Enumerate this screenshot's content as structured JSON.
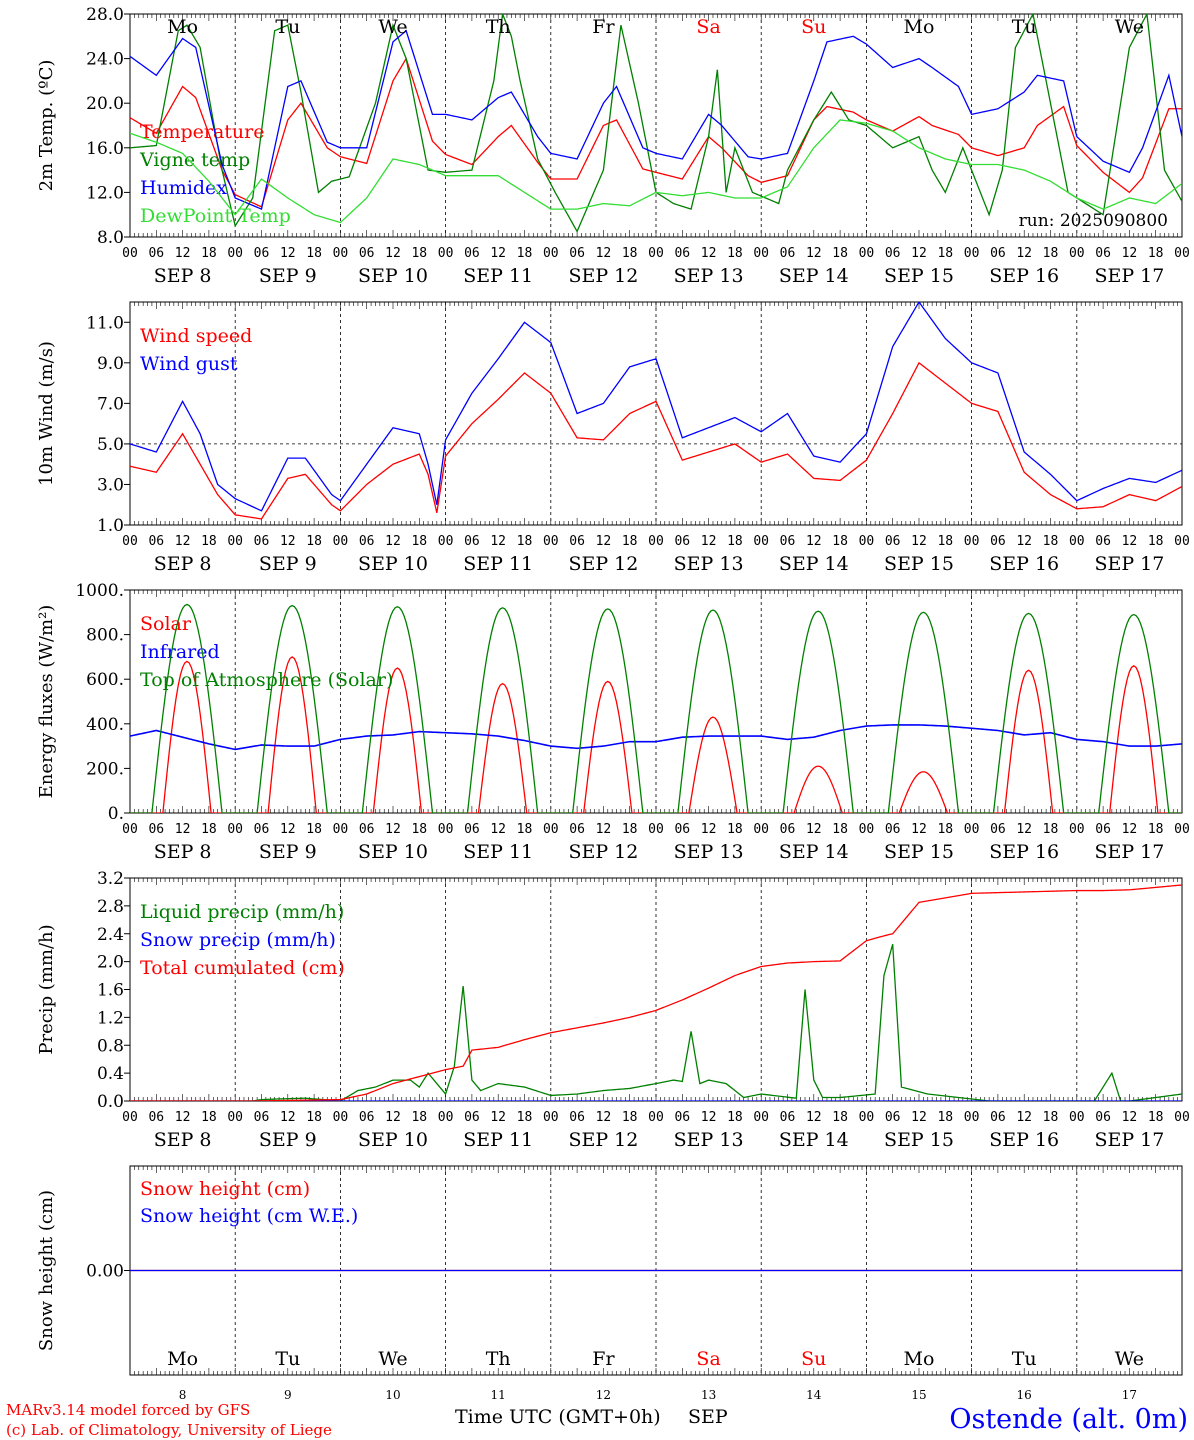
{
  "colors": {
    "red": "#ff0000",
    "green": "#008000",
    "blue": "#0000ff",
    "lightgreen": "#33dd33",
    "weekend": "#ff0000",
    "black": "#000000"
  },
  "x_axis": {
    "hour_ticks": [
      "00",
      "06",
      "12",
      "18"
    ],
    "hour_end": "00",
    "date_labels": [
      "SEP  8",
      "SEP  9",
      "SEP 10",
      "SEP 11",
      "SEP 12",
      "SEP 13",
      "SEP 14",
      "SEP 15",
      "SEP 16",
      "SEP 17"
    ],
    "day_names": [
      "Mo",
      "Tu",
      "We",
      "Th",
      "Fr",
      "Sa",
      "Su",
      "Mo",
      "Tu",
      "We"
    ],
    "weekend_index": [
      5,
      6
    ],
    "day_numbers": [
      "8",
      "9",
      "10",
      "11",
      "12",
      "13",
      "14",
      "15",
      "16",
      "17"
    ],
    "title": "Time UTC (GMT+0h)",
    "month": "SEP"
  },
  "footer": {
    "model": "MARv3.14 model forced by GFS",
    "credit": "(c) Lab. of Climatology, University of Liege",
    "station": "Ostende (alt. 0m)"
  },
  "chart_data": [
    {
      "type": "line",
      "id": "temp",
      "ylabel": "2m Temp. (ºC)",
      "ylim": [
        8,
        28
      ],
      "yticks": [
        "8.0",
        "12.0",
        "16.0",
        "20.0",
        "24.0",
        "28.0"
      ],
      "run_label": "run: 2025090800",
      "series": [
        {
          "name": "Temperature",
          "color": "red",
          "x": [
            0,
            6,
            12,
            15,
            21,
            24,
            30,
            36,
            39,
            45,
            48,
            54,
            60,
            63,
            69,
            72,
            78,
            84,
            87,
            93,
            96,
            102,
            108,
            111,
            117,
            120,
            126,
            132,
            135,
            141,
            144,
            150,
            156,
            159,
            165,
            168,
            174,
            180,
            183,
            189,
            192,
            198,
            204,
            207,
            213,
            216,
            222,
            228,
            231,
            237
          ],
          "values": [
            18.7,
            17.3,
            21.5,
            20.5,
            14,
            11.8,
            10.7,
            18.5,
            20,
            16,
            15.2,
            14.6,
            22,
            24,
            16.6,
            15.4,
            14.5,
            17,
            18,
            14.7,
            13.2,
            13.2,
            18,
            18.5,
            14.1,
            13.8,
            13.2,
            17,
            16,
            13.5,
            12.9,
            13.5,
            18.5,
            19.7,
            19.2,
            18.5,
            17.5,
            18.8,
            18,
            17.2,
            16,
            15.3,
            16,
            18,
            19.7,
            16.2,
            13.8,
            12,
            13.3,
            19.5
          ]
        },
        {
          "name": "Vigne temp",
          "color": "green",
          "x": [
            0,
            6,
            11,
            13,
            16,
            21,
            24,
            28,
            33,
            36,
            39,
            43,
            46,
            50,
            56,
            60,
            63,
            68,
            72,
            78,
            83,
            85,
            87,
            89,
            93,
            97,
            102,
            108,
            112,
            116,
            120,
            124,
            128,
            132,
            134,
            136,
            138,
            142,
            148,
            150,
            156,
            160,
            164,
            168,
            174,
            180,
            183,
            186,
            190,
            196,
            199,
            202,
            206,
            210,
            214,
            218,
            222,
            228,
            232,
            236,
            240
          ],
          "values": [
            16,
            16.2,
            26.5,
            27,
            25,
            14,
            9,
            11.5,
            26.5,
            27,
            21,
            12,
            13,
            13.4,
            20,
            27,
            24,
            14,
            13.8,
            14,
            22,
            28,
            26,
            22,
            15,
            12,
            8.5,
            14,
            27,
            20,
            12,
            11,
            10.5,
            17,
            23,
            12,
            16,
            12,
            11,
            14,
            18.5,
            21,
            18.5,
            18,
            16,
            17,
            14,
            12,
            16,
            10,
            14,
            25,
            28,
            20,
            12,
            11,
            10,
            25,
            28,
            14,
            11.2
          ]
        },
        {
          "name": "Humidex",
          "color": "blue",
          "x": [
            0,
            6,
            12,
            15,
            21,
            24,
            30,
            36,
            39,
            45,
            48,
            54,
            60,
            63,
            69,
            72,
            78,
            84,
            87,
            93,
            96,
            102,
            108,
            111,
            117,
            120,
            126,
            132,
            135,
            141,
            144,
            150,
            156,
            159,
            165,
            168,
            174,
            180,
            183,
            189,
            192,
            198,
            204,
            207,
            213,
            216,
            222,
            228,
            231,
            237,
            240
          ],
          "values": [
            24.2,
            22.5,
            25.8,
            25,
            14.5,
            11.5,
            10.5,
            21.5,
            22,
            16.5,
            16,
            16,
            25.5,
            26.5,
            19,
            19,
            18.5,
            20.5,
            21,
            17,
            15.5,
            15,
            20,
            21.5,
            16,
            15.5,
            15,
            19,
            18,
            15.2,
            15,
            15.5,
            22,
            25.5,
            26,
            25.3,
            23.2,
            24,
            23.2,
            21.5,
            19,
            19.5,
            21,
            22.5,
            22,
            17,
            14.8,
            13.8,
            16,
            22.5,
            17
          ]
        },
        {
          "name": "DewPoint Temp",
          "color": "lightgreen",
          "x": [
            0,
            6,
            12,
            18,
            24,
            30,
            36,
            42,
            48,
            54,
            60,
            66,
            72,
            78,
            84,
            90,
            96,
            102,
            108,
            114,
            120,
            126,
            132,
            138,
            144,
            150,
            156,
            162,
            168,
            174,
            180,
            186,
            192,
            198,
            204,
            210,
            216,
            222,
            228,
            234,
            240
          ],
          "values": [
            17.3,
            16.5,
            15.5,
            13,
            10,
            13.2,
            11.5,
            10,
            9.3,
            11.5,
            15,
            14.5,
            13.5,
            13.5,
            13.5,
            12,
            10.5,
            10.5,
            11,
            10.8,
            12,
            11.7,
            12,
            11.5,
            11.5,
            12.5,
            16,
            18.5,
            18.2,
            17.5,
            16,
            15,
            14.5,
            14.5,
            14,
            13,
            11.5,
            10.5,
            11.5,
            11,
            12.8
          ]
        }
      ]
    },
    {
      "type": "line",
      "id": "wind",
      "ylabel": "10m Wind (m/s)",
      "ylim": [
        1,
        12
      ],
      "yticks": [
        "1.0",
        "3.0",
        "5.0",
        "7.0",
        "9.0",
        "11.0"
      ],
      "reference_line": 5,
      "series": [
        {
          "name": "Wind speed",
          "color": "red",
          "x": [
            0,
            6,
            12,
            16,
            20,
            24,
            30,
            36,
            40,
            46,
            48,
            54,
            60,
            66,
            68,
            70,
            72,
            78,
            84,
            90,
            96,
            102,
            108,
            114,
            120,
            126,
            132,
            138,
            144,
            150,
            156,
            162,
            168,
            174,
            180,
            186,
            192,
            198,
            204,
            210,
            216,
            222,
            228,
            234,
            240
          ],
          "values": [
            3.9,
            3.6,
            5.5,
            4,
            2.5,
            1.5,
            1.3,
            3.3,
            3.5,
            2,
            1.7,
            3,
            4,
            4.5,
            3.5,
            1.6,
            4.4,
            6,
            7.2,
            8.5,
            7.5,
            5.3,
            5.2,
            6.5,
            7.1,
            4.2,
            4.6,
            5,
            4.1,
            4.5,
            3.3,
            3.2,
            4.2,
            6.5,
            9,
            8,
            7,
            6.6,
            3.6,
            2.5,
            1.8,
            1.9,
            2.5,
            2.2,
            2.9
          ]
        },
        {
          "name": "Wind gust",
          "color": "blue",
          "x": [
            0,
            6,
            12,
            16,
            20,
            24,
            30,
            36,
            40,
            46,
            48,
            54,
            60,
            66,
            68,
            70,
            72,
            78,
            84,
            90,
            96,
            102,
            108,
            114,
            120,
            126,
            132,
            138,
            144,
            150,
            156,
            162,
            168,
            174,
            180,
            186,
            192,
            198,
            204,
            210,
            216,
            222,
            228,
            234,
            240
          ],
          "values": [
            5,
            4.6,
            7.1,
            5.5,
            3,
            2.3,
            1.7,
            4.3,
            4.3,
            2.5,
            2.2,
            4,
            5.8,
            5.5,
            4,
            2,
            5.2,
            7.5,
            9.2,
            11,
            10,
            6.5,
            7,
            8.8,
            9.2,
            5.3,
            5.8,
            6.3,
            5.6,
            6.5,
            4.4,
            4.1,
            5.5,
            9.8,
            12,
            10.2,
            9,
            8.5,
            4.6,
            3.5,
            2.2,
            2.8,
            3.3,
            3.1,
            3.7
          ]
        }
      ]
    },
    {
      "type": "line",
      "id": "energy",
      "ylabel": "Energy fluxes (W/m²)",
      "ylim": [
        0,
        1000
      ],
      "yticks": [
        "0.",
        "200.",
        "400.",
        "600.",
        "800.",
        "1000."
      ],
      "series": [
        {
          "name": "Solar",
          "color": "red",
          "peaks": [
            680,
            700,
            650,
            580,
            590,
            430,
            210,
            185,
            640,
            660
          ]
        },
        {
          "name": "Infrared",
          "color": "blue",
          "x": [
            0,
            6,
            12,
            18,
            24,
            30,
            36,
            42,
            48,
            54,
            60,
            66,
            72,
            78,
            84,
            90,
            96,
            102,
            108,
            114,
            120,
            126,
            132,
            138,
            144,
            150,
            156,
            162,
            168,
            174,
            180,
            186,
            192,
            198,
            204,
            210,
            216,
            222,
            228,
            234,
            240
          ],
          "values": [
            345,
            370,
            340,
            310,
            285,
            305,
            300,
            300,
            330,
            345,
            350,
            365,
            360,
            355,
            345,
            325,
            300,
            290,
            300,
            320,
            320,
            340,
            345,
            345,
            345,
            330,
            340,
            370,
            390,
            395,
            395,
            390,
            380,
            370,
            350,
            360,
            330,
            320,
            300,
            300,
            310
          ]
        },
        {
          "name": "Top of Atmosphere (Solar)",
          "color": "green",
          "peaks": [
            935,
            930,
            925,
            920,
            915,
            910,
            905,
            900,
            895,
            890
          ]
        }
      ]
    },
    {
      "type": "line",
      "id": "precip",
      "ylabel": "Precip (mm/h)",
      "ylim": [
        0,
        3.2
      ],
      "yticks": [
        "0.0",
        "0.4",
        "0.8",
        "1.2",
        "1.6",
        "2.0",
        "2.4",
        "2.8",
        "3.2"
      ],
      "series": [
        {
          "name": "Liquid precip (mm/h)",
          "color": "green",
          "x": [
            0,
            28,
            30,
            34,
            40,
            48,
            52,
            56,
            60,
            64,
            66,
            68,
            70,
            72,
            74,
            76,
            78,
            80,
            84,
            90,
            96,
            102,
            108,
            114,
            120,
            124,
            126,
            128,
            130,
            132,
            136,
            140,
            144,
            152,
            154,
            156,
            158,
            162,
            170,
            172,
            174,
            176,
            182,
            196,
            200,
            220,
            224,
            226,
            228,
            240
          ],
          "values": [
            0,
            0,
            0.02,
            0.03,
            0.04,
            0,
            0.15,
            0.2,
            0.3,
            0.3,
            0.2,
            0.4,
            0.25,
            0.1,
            0.5,
            1.65,
            0.3,
            0.15,
            0.25,
            0.2,
            0.08,
            0.1,
            0.15,
            0.18,
            0.25,
            0.3,
            0.28,
            1,
            0.25,
            0.3,
            0.25,
            0.05,
            0.1,
            0.04,
            1.6,
            0.3,
            0.05,
            0.05,
            0.1,
            1.8,
            2.25,
            0.2,
            0.1,
            0,
            0,
            0,
            0.4,
            0,
            0,
            0.1
          ]
        },
        {
          "name": "Snow precip (mm/h)",
          "color": "blue",
          "x": [
            0,
            240
          ],
          "values": [
            0,
            0
          ]
        },
        {
          "name": "Total cumulated (cm)",
          "color": "red",
          "x": [
            0,
            28,
            48,
            54,
            60,
            66,
            72,
            76,
            78,
            84,
            90,
            96,
            102,
            108,
            114,
            120,
            126,
            132,
            138,
            144,
            150,
            156,
            162,
            168,
            172,
            174,
            180,
            192,
            210,
            216,
            222,
            228,
            240
          ],
          "values": [
            0,
            0,
            0.02,
            0.1,
            0.25,
            0.35,
            0.45,
            0.5,
            0.73,
            0.77,
            0.88,
            0.98,
            1.05,
            1.12,
            1.2,
            1.3,
            1.45,
            1.62,
            1.8,
            1.93,
            1.98,
            2,
            2.01,
            2.3,
            2.37,
            2.4,
            2.85,
            2.98,
            3.01,
            3.02,
            3.02,
            3.03,
            3.1
          ]
        }
      ]
    },
    {
      "type": "line",
      "id": "snow",
      "ylabel": "Snow height (cm)",
      "ylim": [
        -1,
        1
      ],
      "yticks": [
        "0.00"
      ],
      "series": [
        {
          "name": "Snow height (cm)",
          "color": "red",
          "x": [
            0,
            240
          ],
          "values": [
            0,
            0
          ]
        },
        {
          "name": "Snow height (cm W.E.)",
          "color": "blue",
          "x": [
            0,
            240
          ],
          "values": [
            0,
            0
          ]
        }
      ]
    }
  ]
}
